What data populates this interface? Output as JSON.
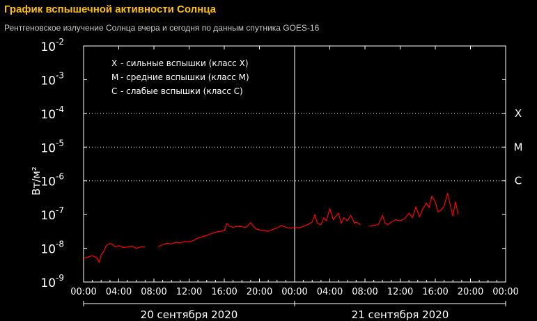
{
  "header": {
    "title": "График вспышечной активности Солнца",
    "subtitle": "Рентгеновское излучение Солнца вчера и сегодня по данным спутника GOES-16"
  },
  "chart_data": {
    "type": "line",
    "y_scale": "log",
    "ylim": [
      1e-09,
      0.01
    ],
    "ylabel": "Вт/м²",
    "y_ticks": [
      {
        "base": "10",
        "exp": "-2"
      },
      {
        "base": "10",
        "exp": "-3"
      },
      {
        "base": "10",
        "exp": "-4"
      },
      {
        "base": "10",
        "exp": "-5"
      },
      {
        "base": "10",
        "exp": "-6"
      },
      {
        "base": "10",
        "exp": "-7"
      },
      {
        "base": "10",
        "exp": "-8"
      },
      {
        "base": "10",
        "exp": "-9"
      }
    ],
    "x_ticks": [
      "00:00",
      "04:00",
      "08:00",
      "12:00",
      "16:00",
      "20:00",
      "00:00",
      "04:00",
      "08:00",
      "12:00",
      "16:00",
      "20:00",
      "00:00"
    ],
    "xlim_hours": [
      0,
      48
    ],
    "day_labels": [
      "20 сентября 2020",
      "21 сентября 2020"
    ],
    "legend": [
      {
        "letter": "X",
        "text": "- сильные вспышки (класс X)"
      },
      {
        "letter": "M",
        "text": "- средние вспышки (класс M)"
      },
      {
        "letter": "C",
        "text": "- слабые вспышки (класс C)"
      }
    ],
    "class_levels": [
      {
        "label": "X",
        "value": 0.0001
      },
      {
        "label": "M",
        "value": 1e-05
      },
      {
        "label": "C",
        "value": 1e-06
      }
    ],
    "grid": "dotted horizontal at class thresholds",
    "line_color": "#ff0000",
    "series": [
      {
        "segments": [
          {
            "x": [
              0,
              0.5,
              1,
              1.5,
              1.8,
              2,
              2.3,
              2.6,
              3,
              3.3,
              3.6,
              4,
              4.5,
              5,
              5.5,
              6,
              6.5,
              7.0
            ],
            "y": [
              5e-09,
              5.5e-09,
              6e-09,
              5.2e-09,
              3.8e-09,
              6.5e-09,
              8e-09,
              1.2e-08,
              1.4e-08,
              1.3e-08,
              1.1e-08,
              1.2e-08,
              1.05e-08,
              1.1e-08,
              1.15e-08,
              1e-08,
              1.1e-08,
              1.12e-08
            ]
          },
          {
            "x": [
              8.5,
              9,
              9.5,
              10,
              10.5,
              11,
              11.5,
              12,
              12.5,
              13,
              13.5,
              14,
              14.5,
              15,
              15.5,
              16,
              16.3,
              16.6,
              17,
              17.5,
              18,
              18.5,
              19,
              19.3,
              19.6,
              20,
              20.5,
              21,
              21.5,
              22,
              22.5,
              23,
              23.5,
              24
            ],
            "y": [
              1.1e-08,
              1.3e-08,
              1.4e-08,
              1.35e-08,
              1.5e-08,
              1.45e-08,
              1.6e-08,
              1.55e-08,
              1.7e-08,
              2e-08,
              2.2e-08,
              2.4e-08,
              2.7e-08,
              3e-08,
              3.2e-08,
              3.3e-08,
              5.5e-08,
              4.5e-08,
              4.2e-08,
              4.5e-08,
              4.3e-08,
              4.2e-08,
              5.8e-08,
              4.5e-08,
              3.8e-08,
              3.5e-08,
              3.3e-08,
              3.2e-08,
              3.6e-08,
              4e-08,
              4.8e-08,
              4.2e-08,
              3.9e-08,
              4.2e-08
            ]
          },
          {
            "x": [
              24,
              24.5,
              25,
              25.5,
              26,
              26.3,
              26.6,
              27,
              27.3,
              27.6,
              28,
              28.4,
              28.7,
              29,
              29.3,
              29.6,
              30,
              30.4,
              30.8,
              31,
              31.5
            ],
            "y": [
              4.2e-08,
              4e-08,
              4.5e-08,
              5e-08,
              6e-08,
              1e-07,
              5.5e-08,
              5e-08,
              8e-08,
              6.5e-08,
              1.5e-07,
              7e-08,
              9e-08,
              1.1e-07,
              5.5e-08,
              8e-08,
              6.5e-08,
              9.5e-08,
              5.5e-08,
              6e-08,
              5e-08
            ]
          },
          {
            "x": [
              32.5,
              33,
              33.5,
              34,
              34.3,
              34.6,
              35,
              35.5,
              36,
              36.5,
              37,
              37.4,
              37.8,
              38.2,
              38.6,
              39,
              39.3,
              39.6,
              40,
              40.3,
              40.6,
              41,
              41.4,
              41.7,
              42,
              42.3,
              42.6
            ],
            "y": [
              4.5e-08,
              4.8e-08,
              5e-08,
              9.5e-08,
              5.5e-08,
              5e-08,
              6e-08,
              7e-08,
              6.5e-08,
              7.5e-08,
              1.1e-07,
              8e-08,
              1.7e-07,
              8.5e-08,
              1.5e-07,
              2.2e-07,
              1.6e-07,
              3.5e-07,
              2.4e-07,
              1.2e-07,
              1.3e-07,
              1.8e-07,
              4.3e-07,
              1.9e-07,
              9e-08,
              2.4e-07,
              1e-07
            ]
          }
        ]
      }
    ]
  }
}
